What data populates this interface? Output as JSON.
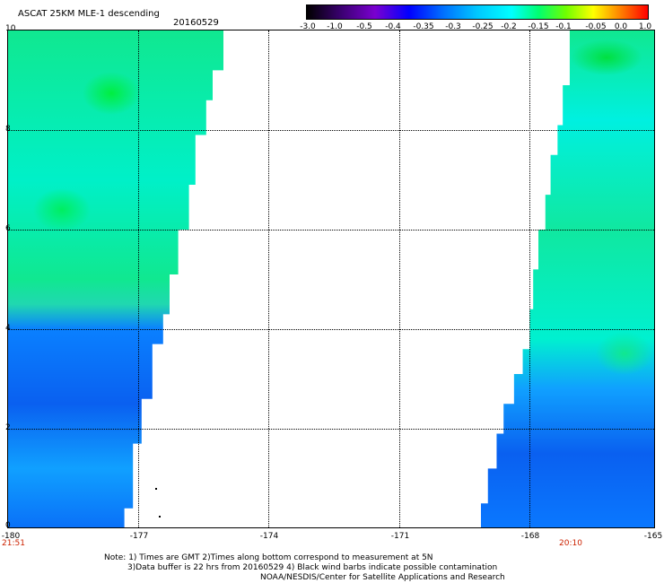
{
  "header": {
    "title": "ASCAT 25KM MLE-1 descending",
    "date": "20160529"
  },
  "colorbar": {
    "labels": [
      "-3.0",
      "-1.0",
      "-0.5",
      "-0.4",
      "-0.35",
      "-0.3",
      "-0.25",
      "-0.2",
      "-0.15",
      "-0.1",
      "-0.05",
      "0.0",
      "1.0"
    ]
  },
  "map": {
    "x_labels": [
      "-180",
      "-177",
      "-174",
      "-171",
      "-168",
      "-165"
    ],
    "y_labels": [
      "0",
      "2",
      "4",
      "6",
      "8",
      "10"
    ],
    "time_left": "21:51",
    "time_right": "20:10",
    "colors": {
      "green": "#00e050",
      "cyan": "#00f0e0",
      "teal": "#00c8ff",
      "blue": "#0064ff"
    }
  },
  "notes": {
    "line1": "Note: 1) Times are GMT 2)Times along bottom correspond to measurement at 5N",
    "line2": "3)Data buffer is 22 hrs from 20160529 4) Black wind barbs indicate possible contamination",
    "line3": "NOAA/NESDIS/Center for Satellite Applications and Research"
  }
}
